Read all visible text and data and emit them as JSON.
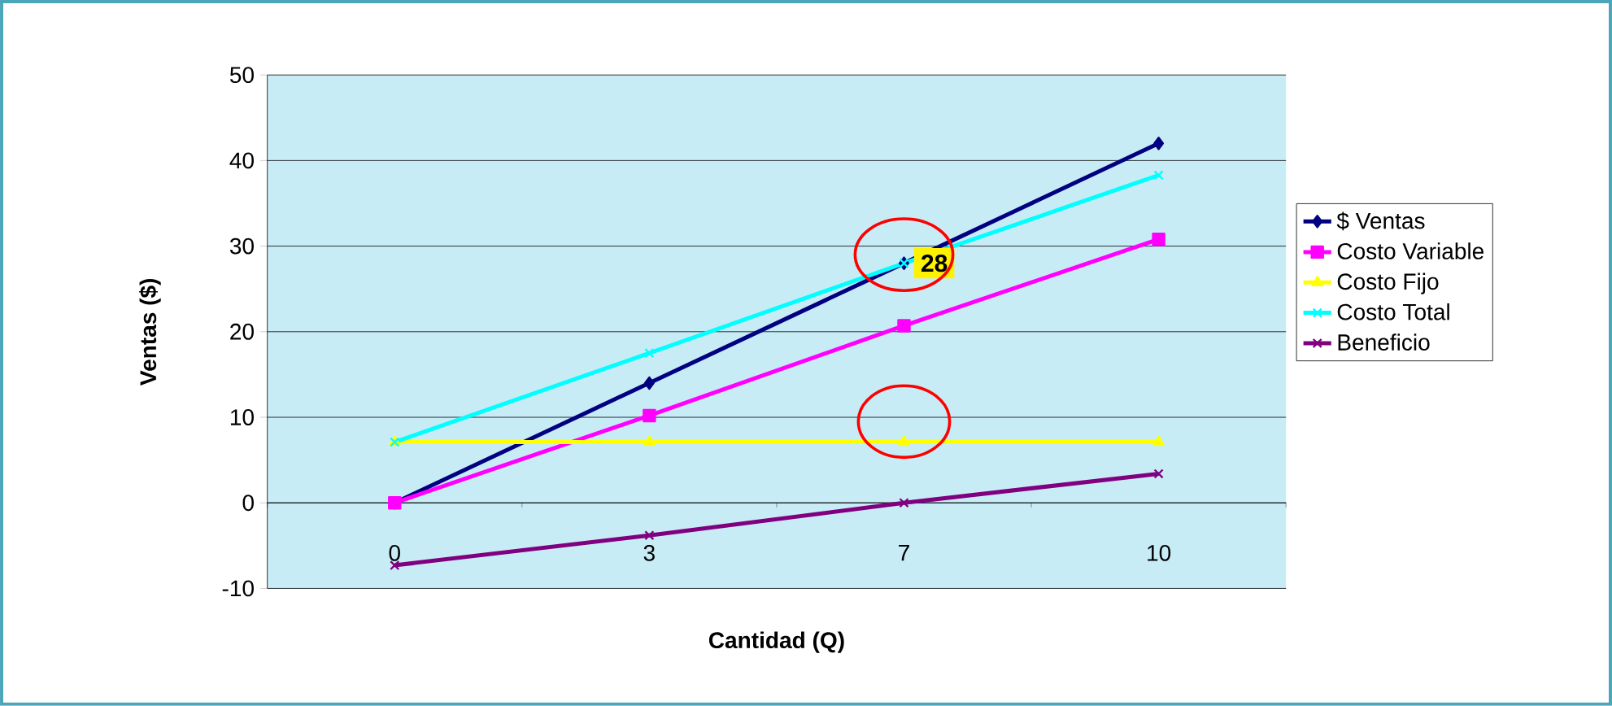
{
  "chart_data": {
    "type": "line",
    "xlabel": "Cantidad (Q)",
    "ylabel": "Ventas ($)",
    "categories": [
      "0",
      "3",
      "7",
      "10"
    ],
    "series": [
      {
        "name": "$ Ventas",
        "color": "#000080",
        "marker": "diamond",
        "values": [
          0,
          14,
          28,
          42
        ]
      },
      {
        "name": "Costo Variable",
        "color": "#ff00ff",
        "marker": "square",
        "values": [
          0,
          10.2,
          20.7,
          30.8
        ]
      },
      {
        "name": "Costo Fijo",
        "color": "#ffff00",
        "marker": "triangle",
        "values": [
          7.1,
          7.1,
          7.1,
          7.1
        ]
      },
      {
        "name": "Costo Total",
        "color": "#00ffff",
        "marker": "cross",
        "values": [
          7.1,
          17.5,
          28,
          38.3
        ]
      },
      {
        "name": "Beneficio",
        "color": "#800080",
        "marker": "cross",
        "values": [
          -7.3,
          -3.8,
          0,
          3.4
        ]
      }
    ],
    "ylim": [
      -10,
      50
    ],
    "yticks": [
      -10,
      0,
      10,
      20,
      30,
      40,
      50
    ],
    "grid": "y",
    "legend": "right",
    "annotations": [
      {
        "text": "28",
        "x": "7",
        "y": 28
      }
    ]
  }
}
